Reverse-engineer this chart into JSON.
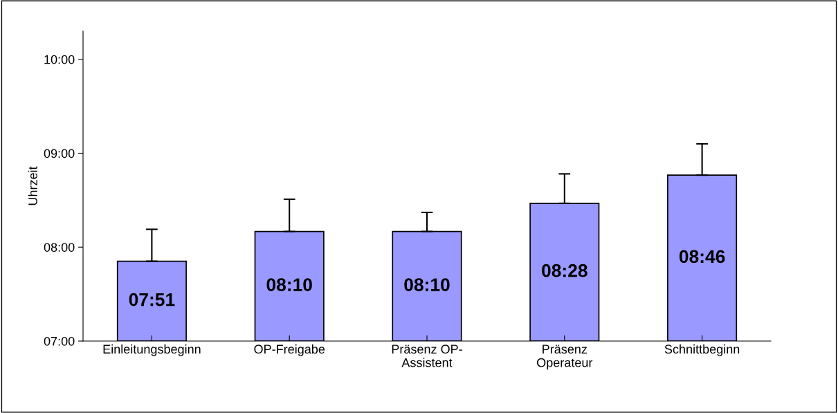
{
  "chart_data": {
    "type": "bar",
    "ylabel": "Uhrzeit",
    "categories": [
      "Einleitungsbeginn",
      "OP-Freigabe",
      "Präsenz OP-\nAssistent",
      "Präsenz\nOperateur",
      "Schnittbeginn"
    ],
    "values": [
      7.85,
      8.1667,
      8.1667,
      8.4667,
      8.7667
    ],
    "value_labels": [
      "07:51",
      "08:10",
      "08:10",
      "08:28",
      "08:46"
    ],
    "errors": [
      [
        7.85,
        8.19
      ],
      [
        8.1667,
        8.51
      ],
      [
        8.1667,
        8.37
      ],
      [
        8.4667,
        8.78
      ],
      [
        8.7667,
        9.1
      ]
    ],
    "color": "#9999ff",
    "ylim": [
      7,
      10.3
    ],
    "yticks": [
      {
        "value": 7,
        "label": "07:00"
      },
      {
        "value": 8,
        "label": "08:00"
      },
      {
        "value": 9,
        "label": "09:00"
      },
      {
        "value": 10,
        "label": "10:00"
      }
    ],
    "grid": false
  }
}
